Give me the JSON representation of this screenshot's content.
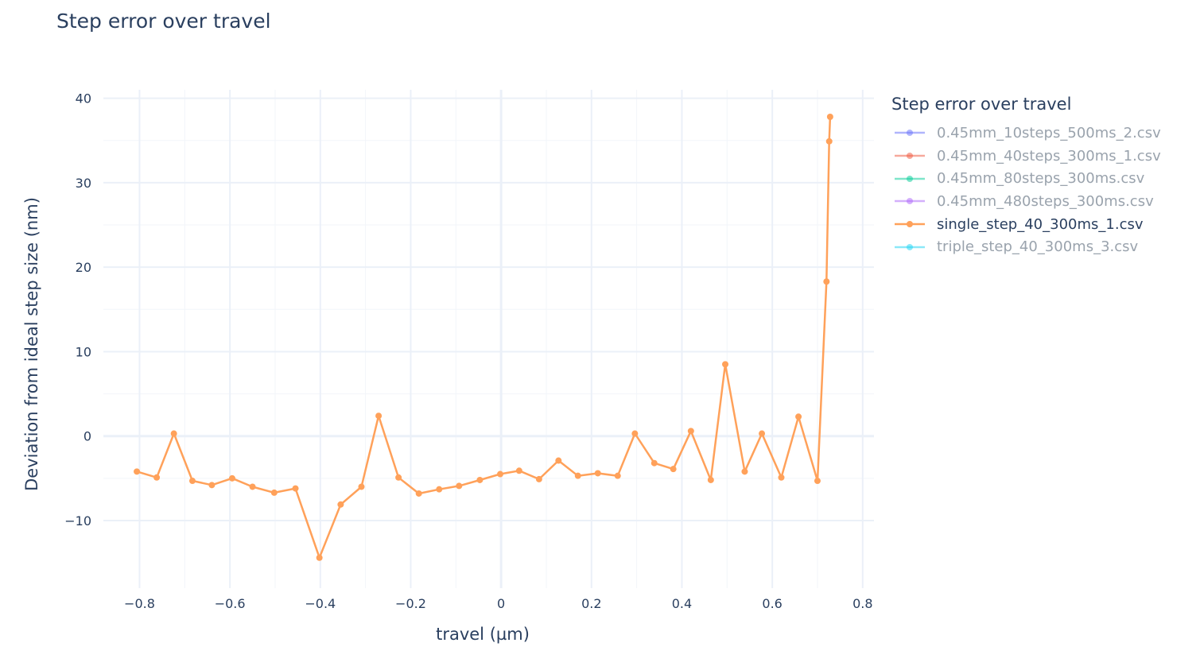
{
  "title": "Step error over travel",
  "chart_data": {
    "type": "line",
    "title": "Step error over travel",
    "xlabel": "travel (µm)",
    "ylabel": "Deviation from ideal step size (nm)",
    "xlim": [
      -0.88,
      0.825
    ],
    "ylim": [
      -18,
      41
    ],
    "xticks": [
      -0.8,
      -0.6,
      -0.4,
      -0.2,
      0,
      0.2,
      0.4,
      0.6,
      0.8
    ],
    "xtick_labels": [
      "−0.8",
      "−0.6",
      "−0.4",
      "−0.2",
      "0",
      "0.2",
      "0.4",
      "0.6",
      "0.8"
    ],
    "yticks": [
      -10,
      0,
      10,
      20,
      30,
      40
    ],
    "ytick_labels": [
      "−10",
      "0",
      "10",
      "20",
      "30",
      "40"
    ],
    "grid": true,
    "legend_title": "Step error over travel",
    "legend_position": "right",
    "series": [
      {
        "name": "0.45mm_10steps_500ms_2.csv",
        "color": "#636efa",
        "visible": false,
        "x": [],
        "y": []
      },
      {
        "name": "0.45mm_40steps_300ms_1.csv",
        "color": "#EF553B",
        "visible": false,
        "x": [],
        "y": []
      },
      {
        "name": "0.45mm_80steps_300ms.csv",
        "color": "#00cc96",
        "visible": false,
        "x": [],
        "y": []
      },
      {
        "name": "0.45mm_480steps_300ms.csv",
        "color": "#ab63fa",
        "visible": false,
        "x": [],
        "y": []
      },
      {
        "name": "single_step_40_300ms_1.csv",
        "color": "#FFA15A",
        "visible": true,
        "x": [
          -0.806,
          -0.762,
          -0.724,
          -0.683,
          -0.64,
          -0.595,
          -0.55,
          -0.502,
          -0.455,
          -0.402,
          -0.355,
          -0.309,
          -0.271,
          -0.227,
          -0.182,
          -0.137,
          -0.093,
          -0.047,
          -0.002,
          0.04,
          0.084,
          0.127,
          0.17,
          0.214,
          0.258,
          0.296,
          0.339,
          0.381,
          0.42,
          0.464,
          0.496,
          0.539,
          0.577,
          0.62,
          0.658,
          0.7,
          0.72,
          0.726,
          0.728
        ],
        "y": [
          -4.2,
          -4.9,
          0.3,
          -5.3,
          -5.8,
          -5.0,
          -6.0,
          -6.7,
          -6.2,
          -14.4,
          -8.1,
          -6.0,
          2.4,
          -4.9,
          -6.8,
          -6.3,
          -5.9,
          -5.2,
          -4.5,
          -4.1,
          -5.1,
          -2.9,
          -4.7,
          -4.4,
          -4.7,
          0.3,
          -3.2,
          -3.9,
          0.6,
          -5.2,
          8.5,
          -4.2,
          0.3,
          -4.9,
          2.3,
          -5.3,
          18.3,
          34.9,
          37.8
        ]
      },
      {
        "name": "triple_step_40_300ms_3.csv",
        "color": "#19d3f3",
        "visible": false,
        "x": [],
        "y": []
      }
    ]
  }
}
